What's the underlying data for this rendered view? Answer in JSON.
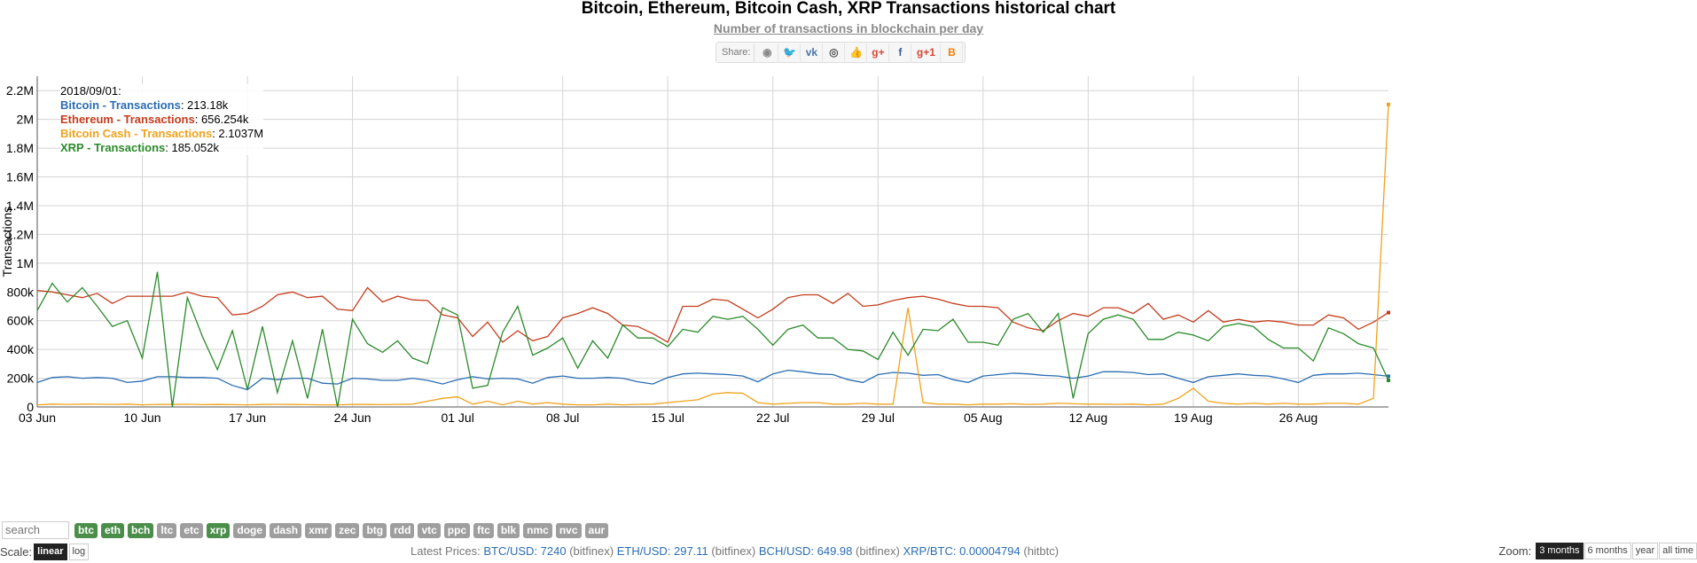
{
  "header": {
    "title": "Bitcoin, Ethereum, Bitcoin Cash, XRP Transactions historical chart",
    "subtitle": "Number of transactions in blockchain per day"
  },
  "share": {
    "label": "Share:",
    "buttons": [
      {
        "name": "reddit-icon",
        "glyph": "◉",
        "color": "#888888"
      },
      {
        "name": "twitter-icon",
        "glyph": "🐦",
        "color": "#1da1f2"
      },
      {
        "name": "vk-icon",
        "glyph": "vk",
        "color": "#4a76a8"
      },
      {
        "name": "weibo-icon",
        "glyph": "◎",
        "color": "#555555"
      },
      {
        "name": "like-icon",
        "glyph": "👍",
        "color": "#4a76a8"
      },
      {
        "name": "google-plus-icon",
        "glyph": "g+",
        "color": "#d34836"
      },
      {
        "name": "facebook-icon",
        "glyph": "f",
        "color": "#3b5998"
      },
      {
        "name": "google-plus-one-icon",
        "glyph": "g+1",
        "color": "#d34836"
      },
      {
        "name": "blogger-icon",
        "glyph": "B",
        "color": "#f57d00"
      }
    ]
  },
  "legend": {
    "date": "2018/09/01:",
    "items": [
      {
        "name": "Bitcoin - Transactions",
        "value": "213.18k",
        "color": "#2a6db2"
      },
      {
        "name": "Ethereum - Transactions",
        "value": "656.254k",
        "color": "#c43c1c"
      },
      {
        "name": "Bitcoin Cash - Transactions",
        "value": "2.1037M",
        "color": "#f0a21a"
      },
      {
        "name": "XRP - Transactions",
        "value": "185.052k",
        "color": "#2a8a2a"
      }
    ]
  },
  "chart_data": {
    "type": "line",
    "ylabel": "Transactions",
    "ylim": [
      0,
      2300000
    ],
    "yticks": [
      0,
      200000,
      400000,
      600000,
      800000,
      1000000,
      1200000,
      1400000,
      1600000,
      1800000,
      2000000,
      2200000
    ],
    "ytick_labels": [
      "0",
      "200k",
      "400k",
      "600k",
      "800k",
      "1M",
      "1.2M",
      "1.4M",
      "1.6M",
      "1.8M",
      "2M",
      "2.2M"
    ],
    "x_range": [
      "2018-06-03",
      "2018-09-01"
    ],
    "xticks": [
      {
        "label": "03 Jun",
        "day": 0
      },
      {
        "label": "10 Jun",
        "day": 7
      },
      {
        "label": "17 Jun",
        "day": 14
      },
      {
        "label": "24 Jun",
        "day": 21
      },
      {
        "label": "01 Jul",
        "day": 28
      },
      {
        "label": "08 Jul",
        "day": 35
      },
      {
        "label": "15 Jul",
        "day": 42
      },
      {
        "label": "22 Jul",
        "day": 49
      },
      {
        "label": "29 Jul",
        "day": 56
      },
      {
        "label": "05 Aug",
        "day": 63
      },
      {
        "label": "12 Aug",
        "day": 70
      },
      {
        "label": "19 Aug",
        "day": 77
      },
      {
        "label": "26 Aug",
        "day": 84
      }
    ],
    "series": [
      {
        "name": "Bitcoin - Transactions",
        "color": "#2a6db2",
        "values": [
          170000,
          205000,
          210000,
          200000,
          205000,
          200000,
          170000,
          180000,
          210000,
          210000,
          205000,
          205000,
          200000,
          150000,
          120000,
          200000,
          190000,
          200000,
          200000,
          165000,
          160000,
          200000,
          195000,
          185000,
          185000,
          200000,
          185000,
          160000,
          190000,
          210000,
          195000,
          200000,
          195000,
          165000,
          205000,
          215000,
          200000,
          200000,
          205000,
          200000,
          175000,
          160000,
          205000,
          230000,
          235000,
          230000,
          225000,
          215000,
          175000,
          230000,
          255000,
          245000,
          230000,
          225000,
          190000,
          170000,
          225000,
          240000,
          235000,
          220000,
          225000,
          190000,
          170000,
          215000,
          225000,
          235000,
          230000,
          220000,
          215000,
          200000,
          215000,
          245000,
          245000,
          240000,
          225000,
          230000,
          200000,
          170000,
          210000,
          220000,
          230000,
          220000,
          215000,
          195000,
          170000,
          220000,
          230000,
          230000,
          235000,
          225000,
          213180
        ]
      },
      {
        "name": "Ethereum - Transactions",
        "color": "#c43c1c",
        "values": [
          810000,
          800000,
          780000,
          760000,
          790000,
          720000,
          770000,
          770000,
          770000,
          770000,
          800000,
          770000,
          760000,
          640000,
          650000,
          700000,
          780000,
          800000,
          760000,
          770000,
          680000,
          670000,
          830000,
          730000,
          770000,
          745000,
          740000,
          640000,
          620000,
          490000,
          590000,
          450000,
          530000,
          460000,
          490000,
          620000,
          650000,
          690000,
          650000,
          570000,
          560000,
          510000,
          450000,
          700000,
          700000,
          750000,
          740000,
          680000,
          620000,
          680000,
          760000,
          780000,
          780000,
          720000,
          790000,
          700000,
          710000,
          740000,
          760000,
          770000,
          750000,
          720000,
          700000,
          700000,
          690000,
          590000,
          550000,
          530000,
          600000,
          650000,
          630000,
          690000,
          690000,
          650000,
          720000,
          610000,
          640000,
          590000,
          670000,
          590000,
          610000,
          590000,
          600000,
          590000,
          570000,
          570000,
          640000,
          620000,
          540000,
          590000,
          656254
        ]
      },
      {
        "name": "Bitcoin Cash - Transactions",
        "color": "#f0a21a",
        "values": [
          15000,
          20000,
          18000,
          20000,
          19000,
          18000,
          20000,
          15000,
          18000,
          17000,
          19000,
          16000,
          17000,
          16000,
          15000,
          17000,
          18000,
          17000,
          16000,
          15000,
          15000,
          18000,
          17000,
          16000,
          18000,
          20000,
          40000,
          60000,
          70000,
          20000,
          40000,
          15000,
          40000,
          20000,
          30000,
          20000,
          15000,
          15000,
          20000,
          15000,
          18000,
          20000,
          30000,
          40000,
          50000,
          90000,
          100000,
          95000,
          30000,
          20000,
          25000,
          30000,
          30000,
          20000,
          20000,
          25000,
          20000,
          20000,
          690000,
          30000,
          20000,
          20000,
          15000,
          20000,
          20000,
          22000,
          18000,
          20000,
          25000,
          22000,
          20000,
          20000,
          18000,
          20000,
          15000,
          20000,
          60000,
          130000,
          40000,
          25000,
          20000,
          25000,
          20000,
          25000,
          20000,
          20000,
          25000,
          25000,
          20000,
          60000,
          2103700
        ]
      },
      {
        "name": "XRP - Transactions",
        "color": "#2a8a2a",
        "values": [
          670000,
          860000,
          730000,
          830000,
          700000,
          560000,
          600000,
          340000,
          940000,
          0,
          760000,
          490000,
          260000,
          530000,
          120000,
          560000,
          100000,
          460000,
          60000,
          540000,
          0,
          610000,
          440000,
          380000,
          460000,
          340000,
          300000,
          690000,
          640000,
          130000,
          150000,
          520000,
          700000,
          360000,
          410000,
          480000,
          270000,
          460000,
          340000,
          570000,
          480000,
          480000,
          420000,
          540000,
          520000,
          630000,
          610000,
          630000,
          540000,
          430000,
          540000,
          570000,
          480000,
          480000,
          400000,
          390000,
          330000,
          520000,
          360000,
          540000,
          530000,
          610000,
          450000,
          450000,
          430000,
          610000,
          650000,
          520000,
          650000,
          60000,
          510000,
          610000,
          640000,
          610000,
          470000,
          470000,
          520000,
          500000,
          460000,
          560000,
          580000,
          560000,
          470000,
          410000,
          410000,
          320000,
          550000,
          510000,
          440000,
          410000,
          185052
        ]
      }
    ]
  },
  "filters": {
    "search_placeholder": "search",
    "coins": [
      {
        "label": "btc",
        "active": true
      },
      {
        "label": "eth",
        "active": true
      },
      {
        "label": "bch",
        "active": true
      },
      {
        "label": "ltc",
        "active": false
      },
      {
        "label": "etc",
        "active": false
      },
      {
        "label": "xrp",
        "active": true
      },
      {
        "label": "doge",
        "active": false
      },
      {
        "label": "dash",
        "active": false
      },
      {
        "label": "xmr",
        "active": false
      },
      {
        "label": "zec",
        "active": false
      },
      {
        "label": "btg",
        "active": false
      },
      {
        "label": "rdd",
        "active": false
      },
      {
        "label": "vtc",
        "active": false
      },
      {
        "label": "ppc",
        "active": false
      },
      {
        "label": "ftc",
        "active": false
      },
      {
        "label": "blk",
        "active": false
      },
      {
        "label": "nmc",
        "active": false
      },
      {
        "label": "nvc",
        "active": false
      },
      {
        "label": "aur",
        "active": false
      }
    ]
  },
  "scale": {
    "label": "Scale:",
    "options": [
      {
        "label": "linear",
        "active": true
      },
      {
        "label": "log",
        "active": false
      }
    ]
  },
  "prices": {
    "label": "Latest Prices:",
    "items": [
      {
        "pair": "BTC/USD:",
        "value": "7240",
        "source": "(bitfinex)"
      },
      {
        "pair": "ETH/USD:",
        "value": "297.11",
        "source": "(bitfinex)"
      },
      {
        "pair": "BCH/USD:",
        "value": "649.98",
        "source": "(bitfinex)"
      },
      {
        "pair": "XRP/BTC:",
        "value": "0.00004794",
        "source": "(hitbtc)"
      }
    ]
  },
  "zoom": {
    "label": "Zoom:",
    "options": [
      {
        "label": "3 months",
        "active": true
      },
      {
        "label": "6 months",
        "active": false
      },
      {
        "label": "year",
        "active": false
      },
      {
        "label": "all time",
        "active": false
      }
    ]
  }
}
